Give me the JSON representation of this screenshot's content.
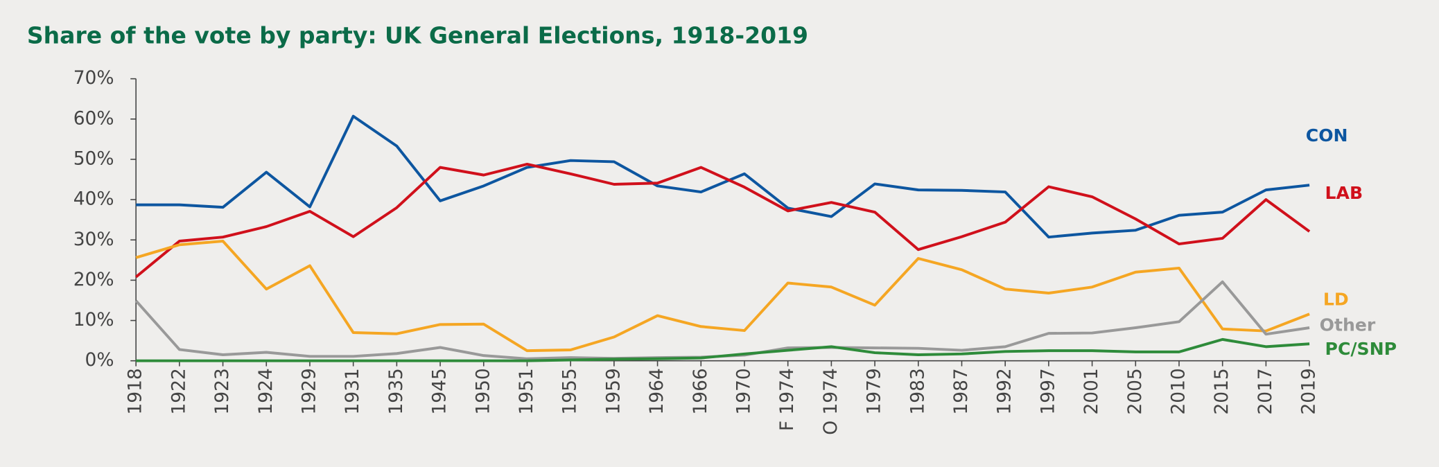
{
  "chart_data": {
    "type": "line",
    "title": "Share of the vote by party: UK General Elections, 1918-2019",
    "categories": [
      "1918",
      "1922",
      "1923",
      "1924",
      "1929",
      "1931",
      "1935",
      "1945",
      "1950",
      "1951",
      "1955",
      "1959",
      "1964",
      "1966",
      "1970",
      "F 1974",
      "O 1974",
      "1979",
      "1983",
      "1987",
      "1992",
      "1997",
      "2001",
      "2005",
      "2010",
      "2015",
      "2017",
      "2019"
    ],
    "ylim": [
      0,
      70
    ],
    "yticks": [
      {
        "value": 0,
        "label": "0%"
      },
      {
        "value": 10,
        "label": "10%"
      },
      {
        "value": 20,
        "label": "20%"
      },
      {
        "value": 30,
        "label": "30%"
      },
      {
        "value": 40,
        "label": "40%"
      },
      {
        "value": 50,
        "label": "50%"
      },
      {
        "value": 60,
        "label": "60%"
      },
      {
        "value": 70,
        "label": "70%"
      }
    ],
    "grid": false,
    "series": [
      {
        "name": "CON",
        "color": "#0d56a0",
        "values": [
          38.7,
          38.7,
          38.1,
          46.8,
          38.2,
          60.7,
          53.3,
          39.7,
          43.4,
          48.0,
          49.7,
          49.4,
          43.4,
          41.9,
          46.4,
          37.9,
          35.8,
          43.9,
          42.4,
          42.3,
          41.9,
          30.7,
          31.7,
          32.4,
          36.1,
          36.9,
          42.4,
          43.6
        ]
      },
      {
        "name": "LAB",
        "color": "#d0101b",
        "values": [
          20.8,
          29.7,
          30.7,
          33.3,
          37.1,
          30.8,
          38.0,
          48.0,
          46.1,
          48.8,
          46.4,
          43.8,
          44.1,
          48.0,
          43.1,
          37.2,
          39.3,
          36.9,
          27.6,
          30.8,
          34.4,
          43.2,
          40.7,
          35.2,
          29.0,
          30.4,
          40.0,
          32.1
        ]
      },
      {
        "name": "LD",
        "color": "#f5a623",
        "values": [
          25.6,
          28.8,
          29.7,
          17.8,
          23.6,
          7.0,
          6.7,
          9.0,
          9.1,
          2.5,
          2.7,
          5.9,
          11.2,
          8.5,
          7.5,
          19.3,
          18.3,
          13.8,
          25.4,
          22.6,
          17.8,
          16.8,
          18.3,
          22.0,
          23.0,
          7.9,
          7.4,
          11.6
        ]
      },
      {
        "name": "Other",
        "color": "#999999",
        "values": [
          14.9,
          2.8,
          1.5,
          2.1,
          1.1,
          1.1,
          1.8,
          3.3,
          1.3,
          0.5,
          0.8,
          0.6,
          0.8,
          0.9,
          1.4,
          3.2,
          3.3,
          3.2,
          3.1,
          2.6,
          3.5,
          6.8,
          6.9,
          8.2,
          9.7,
          19.6,
          6.6,
          8.2
        ]
      },
      {
        "name": "PC/SNP",
        "color": "#2e8b3a",
        "values": [
          0,
          0,
          0,
          0,
          0,
          0,
          0,
          0,
          0,
          0,
          0.2,
          0.4,
          0.5,
          0.7,
          1.7,
          2.6,
          3.5,
          2.0,
          1.5,
          1.7,
          2.3,
          2.5,
          2.5,
          2.2,
          2.2,
          5.3,
          3.5,
          4.2
        ]
      }
    ]
  }
}
